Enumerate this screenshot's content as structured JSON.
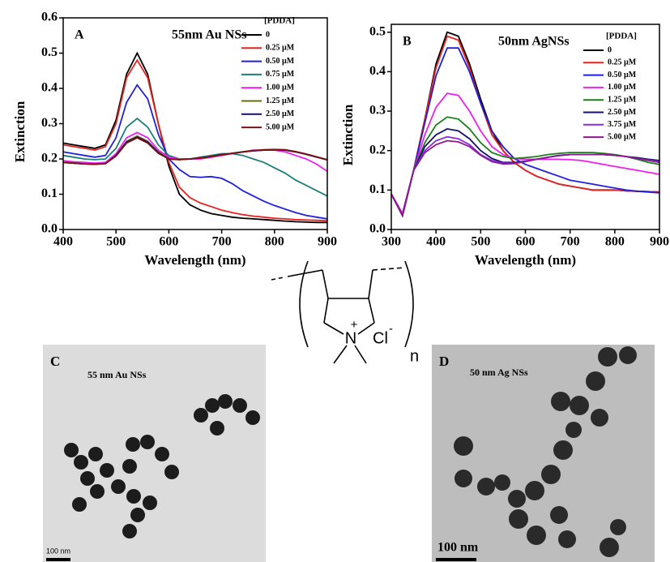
{
  "chart_data": [
    {
      "type": "line",
      "panel": "A",
      "title": "55nm Au NSs",
      "xlabel": "Wavelength (nm)",
      "ylabel": "Extinction",
      "legend_title": "[PDDA]",
      "x": [
        400,
        420,
        440,
        460,
        480,
        500,
        520,
        540,
        560,
        580,
        600,
        620,
        640,
        660,
        680,
        700,
        720,
        740,
        760,
        780,
        800,
        820,
        840,
        860,
        880,
        900
      ],
      "series": [
        {
          "name": "0",
          "color": "#000000",
          "values": [
            0.245,
            0.24,
            0.235,
            0.23,
            0.24,
            0.31,
            0.44,
            0.5,
            0.44,
            0.3,
            0.18,
            0.1,
            0.07,
            0.055,
            0.045,
            0.04,
            0.035,
            0.032,
            0.03,
            0.028,
            0.026,
            0.024,
            0.022,
            0.021,
            0.02,
            0.02
          ]
        },
        {
          "name": "0.25 µM",
          "color": "#e8231f",
          "values": [
            0.24,
            0.235,
            0.23,
            0.225,
            0.235,
            0.3,
            0.43,
            0.48,
            0.43,
            0.3,
            0.19,
            0.12,
            0.09,
            0.075,
            0.065,
            0.055,
            0.048,
            0.042,
            0.038,
            0.035,
            0.032,
            0.03,
            0.028,
            0.027,
            0.026,
            0.025
          ]
        },
        {
          "name": "0.50 µM",
          "color": "#1f1fe0",
          "values": [
            0.22,
            0.215,
            0.21,
            0.205,
            0.21,
            0.26,
            0.36,
            0.41,
            0.37,
            0.27,
            0.2,
            0.17,
            0.15,
            0.148,
            0.15,
            0.145,
            0.13,
            0.11,
            0.095,
            0.08,
            0.068,
            0.058,
            0.048,
            0.04,
            0.035,
            0.03
          ]
        },
        {
          "name": "0.75 µM",
          "color": "#1a7f7a",
          "values": [
            0.21,
            0.205,
            0.2,
            0.198,
            0.2,
            0.23,
            0.29,
            0.315,
            0.29,
            0.24,
            0.21,
            0.2,
            0.2,
            0.205,
            0.21,
            0.215,
            0.215,
            0.21,
            0.2,
            0.19,
            0.175,
            0.16,
            0.14,
            0.125,
            0.11,
            0.095
          ]
        },
        {
          "name": "1.00 µM",
          "color": "#ee1fee",
          "values": [
            0.195,
            0.192,
            0.19,
            0.188,
            0.19,
            0.215,
            0.26,
            0.275,
            0.26,
            0.225,
            0.205,
            0.2,
            0.2,
            0.2,
            0.205,
            0.21,
            0.215,
            0.22,
            0.225,
            0.225,
            0.225,
            0.22,
            0.21,
            0.2,
            0.185,
            0.165
          ]
        },
        {
          "name": "1.25 µM",
          "color": "#6b6b12",
          "values": [
            0.19,
            0.188,
            0.186,
            0.185,
            0.187,
            0.21,
            0.25,
            0.265,
            0.25,
            0.22,
            0.2,
            0.198,
            0.2,
            0.203,
            0.207,
            0.212,
            0.216,
            0.22,
            0.223,
            0.225,
            0.226,
            0.225,
            0.22,
            0.213,
            0.205,
            0.198
          ]
        },
        {
          "name": "2.50 µM",
          "color": "#12126b",
          "values": [
            0.19,
            0.188,
            0.186,
            0.185,
            0.187,
            0.21,
            0.248,
            0.262,
            0.248,
            0.218,
            0.2,
            0.198,
            0.2,
            0.203,
            0.207,
            0.212,
            0.216,
            0.22,
            0.223,
            0.225,
            0.226,
            0.225,
            0.22,
            0.213,
            0.205,
            0.197
          ]
        },
        {
          "name": "5.00 µM",
          "color": "#7a1212",
          "values": [
            0.19,
            0.188,
            0.186,
            0.185,
            0.187,
            0.208,
            0.245,
            0.26,
            0.245,
            0.216,
            0.2,
            0.198,
            0.2,
            0.203,
            0.207,
            0.212,
            0.216,
            0.22,
            0.224,
            0.226,
            0.227,
            0.226,
            0.221,
            0.214,
            0.206,
            0.198
          ]
        }
      ],
      "xlim": [
        400,
        900
      ],
      "ylim": [
        0,
        0.6
      ],
      "xticks": [
        400,
        500,
        600,
        700,
        800,
        900
      ],
      "yticks": [
        {
          "value": 0,
          "label": "0.0"
        },
        0.1,
        0.2,
        0.3,
        0.4,
        0.5,
        0.6
      ]
    },
    {
      "type": "line",
      "panel": "B",
      "title": "50nm AgNSs",
      "xlabel": "Wavelength (nm)",
      "ylabel": "Extinction",
      "legend_title": "[PDDA]",
      "x": [
        300,
        325,
        350,
        375,
        400,
        425,
        450,
        475,
        500,
        525,
        550,
        575,
        600,
        625,
        650,
        675,
        700,
        725,
        750,
        775,
        800,
        825,
        850,
        875,
        900
      ],
      "series": [
        {
          "name": "0",
          "color": "#000000",
          "values": [
            0.09,
            0.04,
            0.15,
            0.28,
            0.42,
            0.5,
            0.49,
            0.42,
            0.33,
            0.25,
            0.2,
            0.17,
            0.15,
            0.135,
            0.125,
            0.115,
            0.11,
            0.105,
            0.1,
            0.1,
            0.1,
            0.098,
            0.097,
            0.096,
            0.095
          ]
        },
        {
          "name": "0.25 µM",
          "color": "#e8231f",
          "values": [
            0.09,
            0.04,
            0.15,
            0.28,
            0.41,
            0.49,
            0.48,
            0.41,
            0.32,
            0.24,
            0.2,
            0.17,
            0.15,
            0.135,
            0.125,
            0.115,
            0.11,
            0.105,
            0.1,
            0.1,
            0.1,
            0.098,
            0.097,
            0.096,
            0.095
          ]
        },
        {
          "name": "0.50 µM",
          "color": "#1f1fe0",
          "values": [
            0.09,
            0.04,
            0.15,
            0.27,
            0.39,
            0.46,
            0.46,
            0.4,
            0.32,
            0.25,
            0.21,
            0.18,
            0.165,
            0.155,
            0.145,
            0.135,
            0.125,
            0.12,
            0.115,
            0.11,
            0.105,
            0.1,
            0.097,
            0.095,
            0.093
          ]
        },
        {
          "name": "1.00 µM",
          "color": "#ee1fee",
          "values": [
            0.09,
            0.04,
            0.15,
            0.24,
            0.31,
            0.345,
            0.34,
            0.3,
            0.25,
            0.21,
            0.19,
            0.18,
            0.178,
            0.178,
            0.178,
            0.178,
            0.177,
            0.175,
            0.17,
            0.165,
            0.16,
            0.155,
            0.15,
            0.145,
            0.14
          ]
        },
        {
          "name": "1.25 µM",
          "color": "#1a7f1a",
          "values": [
            0.09,
            0.035,
            0.15,
            0.22,
            0.265,
            0.285,
            0.28,
            0.255,
            0.22,
            0.195,
            0.185,
            0.18,
            0.182,
            0.185,
            0.19,
            0.193,
            0.195,
            0.195,
            0.195,
            0.193,
            0.19,
            0.185,
            0.178,
            0.17,
            0.165
          ]
        },
        {
          "name": "2.50 µM",
          "color": "#12126b",
          "values": [
            0.09,
            0.035,
            0.15,
            0.21,
            0.24,
            0.255,
            0.25,
            0.23,
            0.2,
            0.18,
            0.17,
            0.17,
            0.173,
            0.178,
            0.183,
            0.188,
            0.19,
            0.19,
            0.19,
            0.19,
            0.188,
            0.185,
            0.182,
            0.178,
            0.175
          ]
        },
        {
          "name": "3.75 µM",
          "color": "#8a2be2",
          "values": [
            0.09,
            0.035,
            0.15,
            0.2,
            0.225,
            0.235,
            0.23,
            0.215,
            0.19,
            0.175,
            0.168,
            0.168,
            0.172,
            0.178,
            0.183,
            0.188,
            0.19,
            0.19,
            0.19,
            0.19,
            0.188,
            0.185,
            0.18,
            0.176,
            0.172
          ]
        },
        {
          "name": "5.00 µM",
          "color": "#8b1a8b",
          "values": [
            0.09,
            0.035,
            0.15,
            0.195,
            0.215,
            0.225,
            0.222,
            0.21,
            0.188,
            0.172,
            0.166,
            0.167,
            0.172,
            0.178,
            0.183,
            0.187,
            0.19,
            0.19,
            0.19,
            0.19,
            0.188,
            0.185,
            0.18,
            0.175,
            0.17
          ]
        }
      ],
      "xlim": [
        300,
        900
      ],
      "ylim": [
        0,
        0.52
      ],
      "xticks": [
        300,
        400,
        500,
        600,
        700,
        800,
        900
      ],
      "yticks": [
        {
          "value": 0,
          "label": "0.0"
        },
        0.1,
        0.2,
        0.3,
        0.4,
        0.5
      ]
    }
  ],
  "structure": {
    "atom": "N",
    "charge": "+",
    "counterion": "Cl",
    "counterion_charge": "-",
    "repeat": "n"
  },
  "images": [
    {
      "panel": "C",
      "caption": "55 nm Au NSs",
      "scale": "100 nm"
    },
    {
      "panel": "D",
      "caption": "50 nm Ag NSs",
      "scale": "100 nm"
    }
  ]
}
